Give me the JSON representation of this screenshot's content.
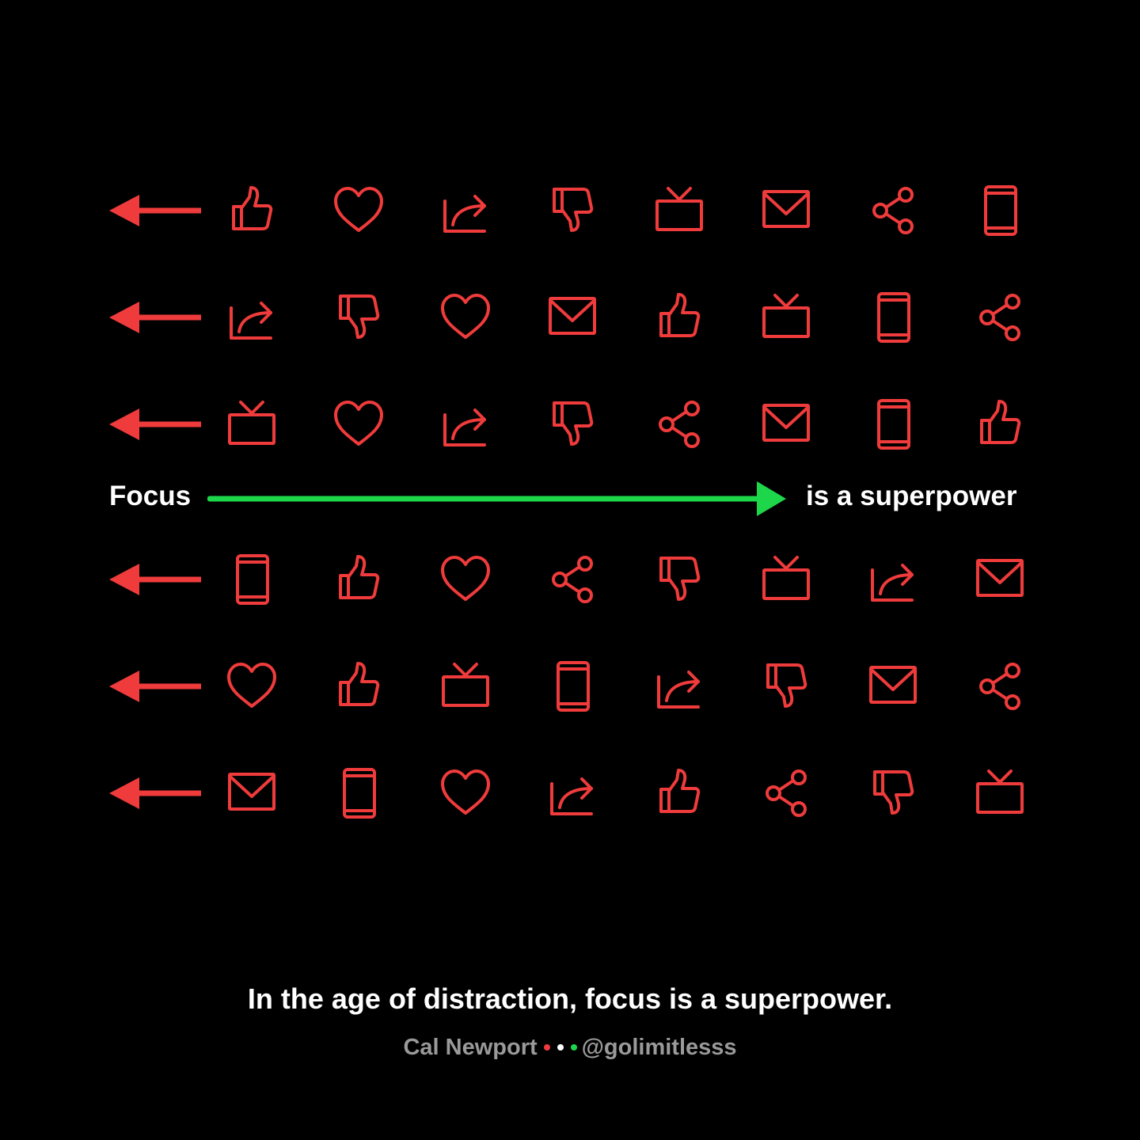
{
  "colors": {
    "background": "#000000",
    "icon": "#ef3b3b",
    "focus_arrow": "#1ed64a",
    "text": "#ffffff",
    "credit_text": "#9a9a9a",
    "dot_red": "#ef3b3b",
    "dot_white": "#ffffff",
    "dot_green": "#1ed64a"
  },
  "focus_row": {
    "left_label": "Focus",
    "right_label": "is a superpower",
    "arrow_icon": "arrow-right-icon"
  },
  "icon_rows": {
    "top": [
      [
        "thumbs-up",
        "heart",
        "share-arrow",
        "thumbs-down",
        "tv",
        "mail",
        "share-nodes",
        "phone"
      ],
      [
        "share-arrow",
        "thumbs-down",
        "heart",
        "mail",
        "thumbs-up",
        "tv",
        "phone",
        "share-nodes"
      ],
      [
        "tv",
        "heart",
        "share-arrow",
        "thumbs-down",
        "share-nodes",
        "mail",
        "phone",
        "thumbs-up"
      ]
    ],
    "bottom": [
      [
        "phone",
        "thumbs-up",
        "heart",
        "share-nodes",
        "thumbs-down",
        "tv",
        "share-arrow",
        "mail"
      ],
      [
        "heart",
        "thumbs-up",
        "tv",
        "phone",
        "share-arrow",
        "thumbs-down",
        "mail",
        "share-nodes"
      ],
      [
        "mail",
        "phone",
        "heart",
        "share-arrow",
        "thumbs-up",
        "share-nodes",
        "thumbs-down",
        "tv"
      ]
    ],
    "row_arrow_icon": "arrow-left-icon"
  },
  "quote": {
    "text": "In the age of distraction, focus is a superpower.",
    "author": "Cal Newport",
    "handle": "@golimitlesss"
  }
}
